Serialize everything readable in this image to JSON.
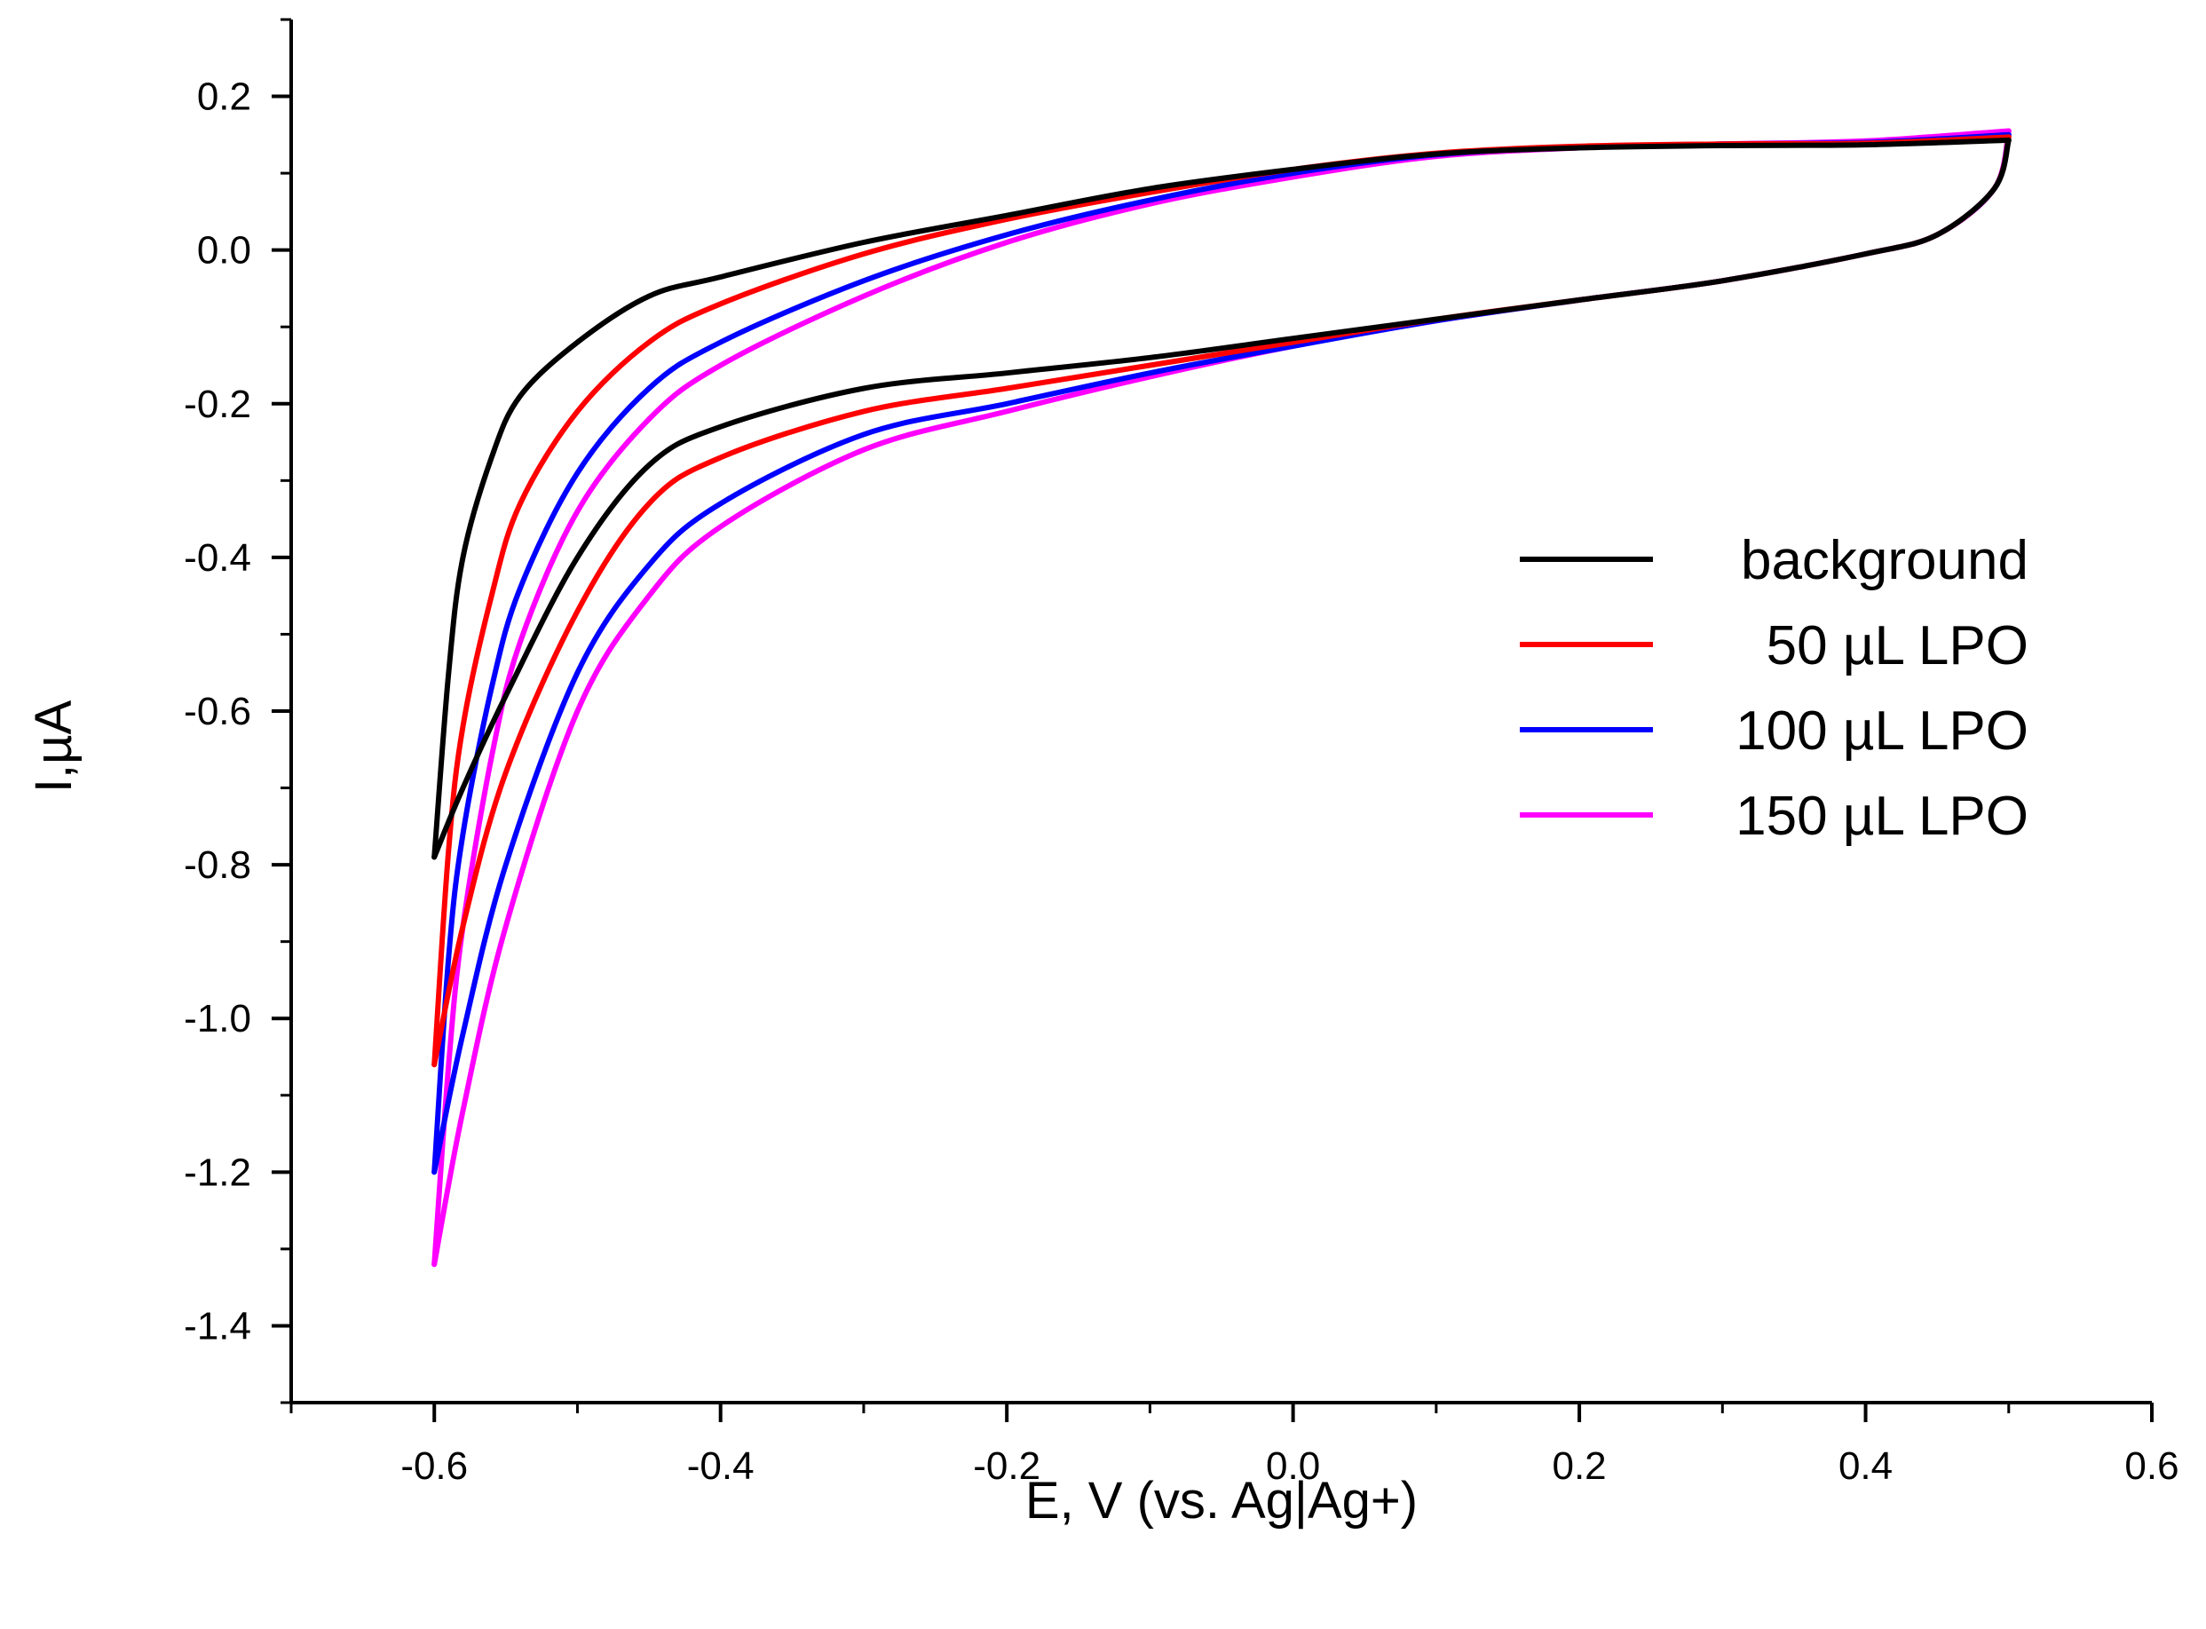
{
  "chart_data": {
    "type": "line",
    "xlabel": "E, V (vs. Ag|Ag+)",
    "ylabel": "I,µA",
    "xlim": [
      -0.7,
      0.6
    ],
    "ylim": [
      -1.5,
      0.3
    ],
    "x_ticks": [
      "-0.6",
      "-0.4",
      "-0.2",
      "0.0",
      "0.2",
      "0.4",
      "0.6"
    ],
    "y_ticks": [
      "0.2",
      "0.0",
      "-0.2",
      "-0.4",
      "-0.6",
      "-0.8",
      "-1.0",
      "-1.2",
      "-1.4"
    ],
    "legend_position": "right-middle",
    "series": [
      {
        "name": "background",
        "color": "#000000",
        "vertex": [
          -0.6,
          -0.79
        ],
        "upper": [
          [
            -0.6,
            -0.79
          ],
          [
            -0.59,
            -0.55
          ],
          [
            -0.58,
            -0.4
          ],
          [
            -0.56,
            -0.27
          ],
          [
            -0.54,
            -0.19
          ],
          [
            -0.5,
            -0.12
          ],
          [
            -0.45,
            -0.06
          ],
          [
            -0.4,
            -0.035
          ],
          [
            -0.3,
            0.01
          ],
          [
            -0.2,
            0.045
          ],
          [
            -0.1,
            0.08
          ],
          [
            0.0,
            0.105
          ],
          [
            0.1,
            0.125
          ],
          [
            0.2,
            0.133
          ],
          [
            0.3,
            0.136
          ],
          [
            0.4,
            0.137
          ],
          [
            0.5,
            0.143
          ]
        ],
        "lower": [
          [
            0.5,
            0.143
          ],
          [
            0.49,
            0.08
          ],
          [
            0.45,
            0.02
          ],
          [
            0.4,
            -0.005
          ],
          [
            0.3,
            -0.04
          ],
          [
            0.2,
            -0.065
          ],
          [
            0.1,
            -0.09
          ],
          [
            0.0,
            -0.115
          ],
          [
            -0.1,
            -0.14
          ],
          [
            -0.2,
            -0.16
          ],
          [
            -0.3,
            -0.18
          ],
          [
            -0.4,
            -0.23
          ],
          [
            -0.45,
            -0.28
          ],
          [
            -0.5,
            -0.4
          ],
          [
            -0.55,
            -0.58
          ],
          [
            -0.58,
            -0.7
          ],
          [
            -0.6,
            -0.79
          ]
        ]
      },
      {
        "name": "50 µL LPO",
        "color": "#ff0000",
        "vertex": [
          -0.6,
          -1.06
        ],
        "upper": [
          [
            -0.6,
            -1.06
          ],
          [
            -0.59,
            -0.78
          ],
          [
            -0.58,
            -0.62
          ],
          [
            -0.56,
            -0.45
          ],
          [
            -0.54,
            -0.33
          ],
          [
            -0.5,
            -0.21
          ],
          [
            -0.45,
            -0.12
          ],
          [
            -0.4,
            -0.07
          ],
          [
            -0.3,
            -0.005
          ],
          [
            -0.2,
            0.04
          ],
          [
            -0.1,
            0.075
          ],
          [
            0.0,
            0.105
          ],
          [
            0.1,
            0.126
          ],
          [
            0.2,
            0.135
          ],
          [
            0.3,
            0.138
          ],
          [
            0.4,
            0.139
          ],
          [
            0.5,
            0.147
          ]
        ],
        "lower": [
          [
            0.5,
            0.147
          ],
          [
            0.49,
            0.08
          ],
          [
            0.45,
            0.02
          ],
          [
            0.4,
            -0.005
          ],
          [
            0.3,
            -0.04
          ],
          [
            0.2,
            -0.065
          ],
          [
            0.1,
            -0.09
          ],
          [
            0.0,
            -0.12
          ],
          [
            -0.1,
            -0.15
          ],
          [
            -0.2,
            -0.18
          ],
          [
            -0.3,
            -0.21
          ],
          [
            -0.4,
            -0.27
          ],
          [
            -0.45,
            -0.33
          ],
          [
            -0.5,
            -0.47
          ],
          [
            -0.55,
            -0.68
          ],
          [
            -0.58,
            -0.88
          ],
          [
            -0.6,
            -1.06
          ]
        ]
      },
      {
        "name": "100 µL LPO",
        "color": "#0000ff",
        "vertex": [
          -0.6,
          -1.2
        ],
        "upper": [
          [
            -0.6,
            -1.2
          ],
          [
            -0.59,
            -0.92
          ],
          [
            -0.58,
            -0.76
          ],
          [
            -0.56,
            -0.57
          ],
          [
            -0.54,
            -0.44
          ],
          [
            -0.5,
            -0.29
          ],
          [
            -0.45,
            -0.18
          ],
          [
            -0.4,
            -0.12
          ],
          [
            -0.3,
            -0.04
          ],
          [
            -0.2,
            0.02
          ],
          [
            -0.1,
            0.065
          ],
          [
            0.0,
            0.1
          ],
          [
            0.1,
            0.124
          ],
          [
            0.2,
            0.134
          ],
          [
            0.3,
            0.138
          ],
          [
            0.4,
            0.14
          ],
          [
            0.5,
            0.15
          ]
        ],
        "lower": [
          [
            0.5,
            0.15
          ],
          [
            0.49,
            0.08
          ],
          [
            0.45,
            0.02
          ],
          [
            0.4,
            -0.005
          ],
          [
            0.3,
            -0.04
          ],
          [
            0.2,
            -0.065
          ],
          [
            0.1,
            -0.092
          ],
          [
            0.0,
            -0.125
          ],
          [
            -0.1,
            -0.16
          ],
          [
            -0.2,
            -0.2
          ],
          [
            -0.3,
            -0.24
          ],
          [
            -0.4,
            -0.33
          ],
          [
            -0.45,
            -0.41
          ],
          [
            -0.5,
            -0.55
          ],
          [
            -0.55,
            -0.8
          ],
          [
            -0.58,
            -1.02
          ],
          [
            -0.6,
            -1.2
          ]
        ]
      },
      {
        "name": "150 µL LPO",
        "color": "#ff00ff",
        "vertex": [
          -0.6,
          -1.32
        ],
        "upper": [
          [
            -0.6,
            -1.32
          ],
          [
            -0.59,
            -1.06
          ],
          [
            -0.58,
            -0.88
          ],
          [
            -0.56,
            -0.66
          ],
          [
            -0.54,
            -0.51
          ],
          [
            -0.5,
            -0.34
          ],
          [
            -0.45,
            -0.22
          ],
          [
            -0.4,
            -0.15
          ],
          [
            -0.3,
            -0.06
          ],
          [
            -0.2,
            0.01
          ],
          [
            -0.1,
            0.06
          ],
          [
            0.0,
            0.095
          ],
          [
            0.1,
            0.122
          ],
          [
            0.2,
            0.133
          ],
          [
            0.3,
            0.138
          ],
          [
            0.4,
            0.142
          ],
          [
            0.5,
            0.155
          ]
        ],
        "lower": [
          [
            0.5,
            0.155
          ],
          [
            0.49,
            0.08
          ],
          [
            0.45,
            0.02
          ],
          [
            0.4,
            -0.005
          ],
          [
            0.3,
            -0.04
          ],
          [
            0.2,
            -0.065
          ],
          [
            0.1,
            -0.092
          ],
          [
            0.0,
            -0.125
          ],
          [
            -0.1,
            -0.165
          ],
          [
            -0.2,
            -0.21
          ],
          [
            -0.3,
            -0.26
          ],
          [
            -0.4,
            -0.36
          ],
          [
            -0.45,
            -0.45
          ],
          [
            -0.5,
            -0.6
          ],
          [
            -0.55,
            -0.88
          ],
          [
            -0.58,
            -1.12
          ],
          [
            -0.6,
            -1.32
          ]
        ]
      }
    ]
  }
}
